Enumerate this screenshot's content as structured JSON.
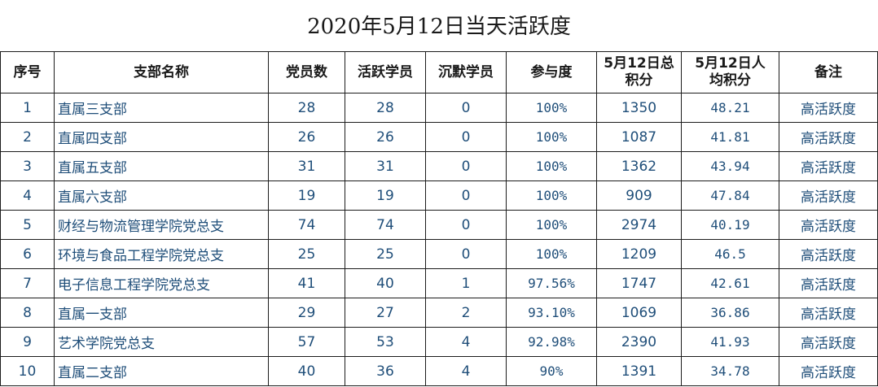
{
  "title": "2020年5月12日当天活跃度",
  "columns": [
    "序号",
    "支部名称",
    "党员数",
    "活跃学员",
    "沉默学员",
    "参与度",
    "5月12日总积分",
    "5月12日人均积分",
    "备注"
  ],
  "rows": [
    {
      "no": "1",
      "name": "直属三支部",
      "members": "28",
      "active": "28",
      "silent": "0",
      "rate": "100%",
      "total": "1350",
      "avg": "48.21",
      "remark": "高活跃度"
    },
    {
      "no": "2",
      "name": "直属四支部",
      "members": "26",
      "active": "26",
      "silent": "0",
      "rate": "100%",
      "total": "1087",
      "avg": "41.81",
      "remark": "高活跃度"
    },
    {
      "no": "3",
      "name": "直属五支部",
      "members": "31",
      "active": "31",
      "silent": "0",
      "rate": "100%",
      "total": "1362",
      "avg": "43.94",
      "remark": "高活跃度"
    },
    {
      "no": "4",
      "name": "直属六支部",
      "members": "19",
      "active": "19",
      "silent": "0",
      "rate": "100%",
      "total": "909",
      "avg": "47.84",
      "remark": "高活跃度"
    },
    {
      "no": "5",
      "name": "财经与物流管理学院党总支",
      "members": "74",
      "active": "74",
      "silent": "0",
      "rate": "100%",
      "total": "2974",
      "avg": "40.19",
      "remark": "高活跃度"
    },
    {
      "no": "6",
      "name": "环境与食品工程学院党总支",
      "members": "25",
      "active": "25",
      "silent": "0",
      "rate": "100%",
      "total": "1209",
      "avg": "46.5",
      "remark": "高活跃度"
    },
    {
      "no": "7",
      "name": "电子信息工程学院党总支",
      "members": "41",
      "active": "40",
      "silent": "1",
      "rate": "97.56%",
      "total": "1747",
      "avg": "42.61",
      "remark": "高活跃度"
    },
    {
      "no": "8",
      "name": "直属一支部",
      "members": "29",
      "active": "27",
      "silent": "2",
      "rate": "93.10%",
      "total": "1069",
      "avg": "36.86",
      "remark": "高活跃度"
    },
    {
      "no": "9",
      "name": "艺术学院党总支",
      "members": "57",
      "active": "53",
      "silent": "4",
      "rate": "92.98%",
      "total": "2390",
      "avg": "41.93",
      "remark": "高活跃度"
    },
    {
      "no": "10",
      "name": "直属二支部",
      "members": "40",
      "active": "36",
      "silent": "4",
      "rate": "90%",
      "total": "1391",
      "avg": "34.78",
      "remark": "高活跃度"
    }
  ]
}
